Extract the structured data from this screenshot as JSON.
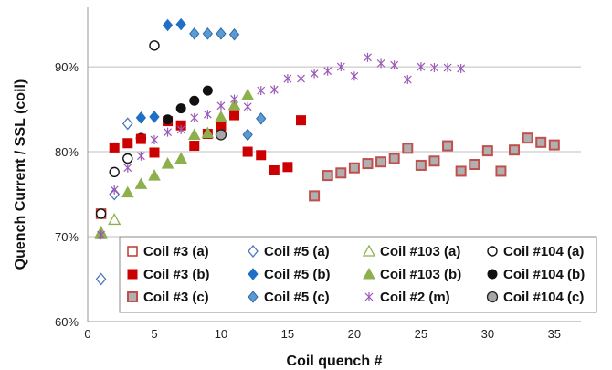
{
  "chart_data": {
    "type": "scatter",
    "xlabel": "Coil quench #",
    "ylabel": "Quench Current / SSL (coil)",
    "xlim": [
      0,
      37
    ],
    "ylim": [
      60,
      97
    ],
    "x_ticks": [
      0,
      5,
      10,
      15,
      20,
      25,
      30,
      35
    ],
    "y_ticks": [
      60,
      70,
      80,
      90
    ],
    "y_tick_labels": [
      "60%",
      "70%",
      "80%",
      "90%"
    ],
    "grid": "horizontal",
    "legend_position": "bottom",
    "series": [
      {
        "name": "Coil #3 (a)",
        "marker": "square-open",
        "color": "#c0392b",
        "points": [
          [
            1,
            72.7
          ]
        ]
      },
      {
        "name": "Coil #5 (a)",
        "marker": "diamond-open",
        "color": "#4a72c4",
        "points": [
          [
            1,
            65.0
          ],
          [
            2,
            75.0
          ],
          [
            3,
            83.3
          ]
        ]
      },
      {
        "name": "Coil #103 (a)",
        "marker": "triangle-open",
        "color": "#8db04c",
        "points": [
          [
            1,
            70.5
          ],
          [
            2,
            72.0
          ]
        ]
      },
      {
        "name": "Coil #104 (a)",
        "marker": "circle-open",
        "color": "#111111",
        "points": [
          [
            1,
            72.7
          ],
          [
            2,
            77.6
          ],
          [
            3,
            79.2
          ],
          [
            4,
            81.6
          ],
          [
            5,
            92.5
          ]
        ]
      },
      {
        "name": "Coil #3 (b)",
        "marker": "square",
        "color": "#cc0000",
        "points": [
          [
            2,
            80.5
          ],
          [
            3,
            81.0
          ],
          [
            4,
            81.5
          ],
          [
            5,
            79.9
          ],
          [
            6,
            83.6
          ],
          [
            7,
            83.1
          ],
          [
            8,
            80.7
          ],
          [
            9,
            82.1
          ],
          [
            10,
            83.0
          ],
          [
            11,
            84.3
          ],
          [
            12,
            80.0
          ],
          [
            13,
            79.6
          ],
          [
            14,
            77.8
          ],
          [
            15,
            78.2
          ],
          [
            16,
            83.7
          ]
        ]
      },
      {
        "name": "Coil #5 (b)",
        "marker": "diamond",
        "color": "#1f6fc6",
        "points": [
          [
            4,
            84.0
          ],
          [
            5,
            84.1
          ],
          [
            6,
            94.9
          ],
          [
            7,
            95.0
          ]
        ]
      },
      {
        "name": "Coil #103 (b)",
        "marker": "triangle",
        "color": "#8db04c",
        "points": [
          [
            1,
            70.3
          ],
          [
            3,
            75.2
          ],
          [
            4,
            76.2
          ],
          [
            5,
            77.2
          ],
          [
            6,
            78.6
          ],
          [
            7,
            79.2
          ],
          [
            8,
            82.0
          ],
          [
            9,
            82.2
          ],
          [
            10,
            84.1
          ],
          [
            11,
            85.5
          ],
          [
            12,
            86.7
          ]
        ]
      },
      {
        "name": "Coil #104 (b)",
        "marker": "circle",
        "color": "#111111",
        "points": [
          [
            6,
            83.8
          ],
          [
            7,
            85.1
          ],
          [
            8,
            86.0
          ],
          [
            9,
            87.2
          ]
        ]
      },
      {
        "name": "Coil #3 (c)",
        "marker": "square-gray",
        "color": "#c0504d",
        "points": [
          [
            17,
            74.8
          ],
          [
            18,
            77.2
          ],
          [
            19,
            77.5
          ],
          [
            20,
            78.1
          ],
          [
            21,
            78.6
          ],
          [
            22,
            78.8
          ],
          [
            23,
            79.2
          ],
          [
            24,
            80.4
          ],
          [
            25,
            78.4
          ],
          [
            26,
            78.9
          ],
          [
            27,
            80.7
          ],
          [
            28,
            77.7
          ],
          [
            29,
            78.5
          ],
          [
            30,
            80.1
          ],
          [
            31,
            77.7
          ],
          [
            32,
            80.2
          ],
          [
            33,
            81.6
          ],
          [
            34,
            81.1
          ],
          [
            35,
            80.8
          ]
        ]
      },
      {
        "name": "Coil #5 (c)",
        "marker": "diamond-light",
        "color": "#5b9bd5",
        "points": [
          [
            8,
            93.9
          ],
          [
            9,
            93.9
          ],
          [
            10,
            93.9
          ],
          [
            11,
            93.8
          ],
          [
            12,
            82.0
          ],
          [
            13,
            83.9
          ]
        ]
      },
      {
        "name": "Coil #2 (m)",
        "marker": "star",
        "color": "#9b59b6",
        "points": [
          [
            1,
            70.2
          ],
          [
            2,
            75.5
          ],
          [
            3,
            78.1
          ],
          [
            4,
            79.5
          ],
          [
            5,
            81.4
          ],
          [
            6,
            82.3
          ],
          [
            7,
            82.6
          ],
          [
            8,
            84.0
          ],
          [
            9,
            84.4
          ],
          [
            10,
            85.4
          ],
          [
            11,
            86.2
          ],
          [
            12,
            85.3
          ],
          [
            13,
            87.2
          ],
          [
            14,
            87.3
          ],
          [
            15,
            88.6
          ],
          [
            16,
            88.6
          ],
          [
            17,
            89.2
          ],
          [
            18,
            89.5
          ],
          [
            19,
            90.0
          ],
          [
            20,
            88.9
          ],
          [
            21,
            91.1
          ],
          [
            22,
            90.4
          ],
          [
            23,
            90.2
          ],
          [
            24,
            88.5
          ],
          [
            25,
            90.0
          ],
          [
            26,
            89.9
          ],
          [
            27,
            89.9
          ],
          [
            28,
            89.8
          ]
        ]
      },
      {
        "name": "Coil #104 (c)",
        "marker": "circle-gray",
        "color": "#888888",
        "points": [
          [
            10,
            82.0
          ]
        ]
      }
    ]
  }
}
